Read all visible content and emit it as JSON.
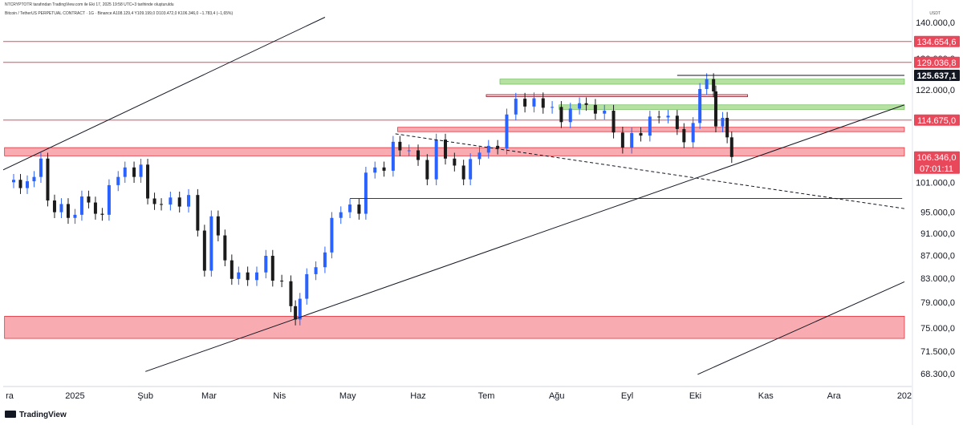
{
  "header": {
    "publish_line": "NTCRYPTOTR tarafından TradingView.com ile Eki 17, 2025 19:58 UTC+3 tarihinde oluşturuldu",
    "symbol_line": "Bitcoin / TetherUS PERPETUAL CONTRACT · 1G · Binance  A108.129,4  Y109.199,0  D103.472,0  K106.346,0  −1.783,4 (−1,65%)"
  },
  "currency": "USDT",
  "brand": "TradingView",
  "colors": {
    "up": "#2962ff",
    "down": "#1b1b1b",
    "zone_red": "#f7a3a9",
    "zone_red_border": "#e0303a",
    "zone_green": "#b7e1a1",
    "line_red": "#e8485a",
    "trend": "#131722",
    "label_red": "#e8485a",
    "label_black": "#131722"
  },
  "chart_data": {
    "type": "candlestick",
    "x_axis": {
      "ticks": [
        {
          "label": "ra",
          "date": "2024-12-01"
        },
        {
          "label": "2025",
          "date": "2025-01-01"
        },
        {
          "label": "Şub",
          "date": "2025-02-01"
        },
        {
          "label": "Mar",
          "date": "2025-03-01"
        },
        {
          "label": "Nis",
          "date": "2025-04-01"
        },
        {
          "label": "May",
          "date": "2025-05-01"
        },
        {
          "label": "Haz",
          "date": "2025-06-01"
        },
        {
          "label": "Tem",
          "date": "2025-07-01"
        },
        {
          "label": "Ağu",
          "date": "2025-08-01"
        },
        {
          "label": "Eyl",
          "date": "2025-09-01"
        },
        {
          "label": "Eki",
          "date": "2025-10-01"
        },
        {
          "label": "Kas",
          "date": "2025-11-01"
        },
        {
          "label": "Ara",
          "date": "2025-12-01"
        },
        {
          "label": "202",
          "date": "2026-01-01"
        }
      ]
    },
    "y_axis": {
      "scale": "log",
      "ticks": [
        {
          "label": "140.000,0",
          "value": 140000
        },
        {
          "label": "130.000,0",
          "value": 130000
        },
        {
          "label": "122.000,0",
          "value": 122000
        },
        {
          "label": "101.000,0",
          "value": 101000
        },
        {
          "label": "95.000,0",
          "value": 95000
        },
        {
          "label": "91.000,0",
          "value": 91000
        },
        {
          "label": "87.000,0",
          "value": 87000
        },
        {
          "label": "83.000,0",
          "value": 83000
        },
        {
          "label": "79.000,0",
          "value": 79000
        },
        {
          "label": "75.000,0",
          "value": 75000
        },
        {
          "label": "71.500,0",
          "value": 71500
        },
        {
          "label": "68.300,0",
          "value": 68300
        }
      ]
    },
    "price_labels": [
      {
        "label": "134.654,6",
        "value": 134654.6,
        "style": "red"
      },
      {
        "label": "129.036,8",
        "value": 129036.8,
        "style": "red"
      },
      {
        "label": "125.637,1",
        "value": 125637.1,
        "style": "black"
      },
      {
        "label": "114.675,0",
        "value": 114675.0,
        "style": "red"
      },
      {
        "label": "106.346,0",
        "value": 106346.0,
        "style": "red",
        "countdown": "07:01:11"
      }
    ],
    "last_price": 106346.0,
    "candles": [
      [
        "2024-12-05",
        101500
      ],
      [
        "2024-12-08",
        99800
      ],
      [
        "2024-12-11",
        101200
      ],
      [
        "2024-12-14",
        102100
      ],
      [
        "2024-12-17",
        106000
      ],
      [
        "2024-12-20",
        97300
      ],
      [
        "2024-12-23",
        95000
      ],
      [
        "2024-12-26",
        96600
      ],
      [
        "2024-12-29",
        93900
      ],
      [
        "2025-01-01",
        94500
      ],
      [
        "2025-01-04",
        98100
      ],
      [
        "2025-01-07",
        96900
      ],
      [
        "2025-01-10",
        94700
      ],
      [
        "2025-01-13",
        94500
      ],
      [
        "2025-01-16",
        100400
      ],
      [
        "2025-01-20",
        102100
      ],
      [
        "2025-01-23",
        104100
      ],
      [
        "2025-01-27",
        102100
      ],
      [
        "2025-01-30",
        104700
      ],
      [
        "2025-02-02",
        97700
      ],
      [
        "2025-02-05",
        96600
      ],
      [
        "2025-02-08",
        96500
      ],
      [
        "2025-02-12",
        97900
      ],
      [
        "2025-02-16",
        96100
      ],
      [
        "2025-02-20",
        98400
      ],
      [
        "2025-02-24",
        91500
      ],
      [
        "2025-02-27",
        84300
      ],
      [
        "2025-03-02",
        94200
      ],
      [
        "2025-03-05",
        90600
      ],
      [
        "2025-03-08",
        86100
      ],
      [
        "2025-03-11",
        82900
      ],
      [
        "2025-03-14",
        84000
      ],
      [
        "2025-03-18",
        82700
      ],
      [
        "2025-03-22",
        84000
      ],
      [
        "2025-03-26",
        86900
      ],
      [
        "2025-03-29",
        82600
      ],
      [
        "2025-04-02",
        82500
      ],
      [
        "2025-04-06",
        78400
      ],
      [
        "2025-04-08",
        76300
      ],
      [
        "2025-04-10",
        79600
      ],
      [
        "2025-04-13",
        83700
      ],
      [
        "2025-04-17",
        84900
      ],
      [
        "2025-04-21",
        87500
      ],
      [
        "2025-04-24",
        93900
      ],
      [
        "2025-04-28",
        95000
      ],
      [
        "2025-05-02",
        96500
      ],
      [
        "2025-05-06",
        94700
      ],
      [
        "2025-05-09",
        103000
      ],
      [
        "2025-05-13",
        104100
      ],
      [
        "2025-05-17",
        103400
      ],
      [
        "2025-05-21",
        109700
      ],
      [
        "2025-05-24",
        107800
      ],
      [
        "2025-05-28",
        107800
      ],
      [
        "2025-06-01",
        105700
      ],
      [
        "2025-06-05",
        101600
      ],
      [
        "2025-06-09",
        110200
      ],
      [
        "2025-06-13",
        106000
      ],
      [
        "2025-06-17",
        104500
      ],
      [
        "2025-06-21",
        101600
      ],
      [
        "2025-06-24",
        105900
      ],
      [
        "2025-06-28",
        107300
      ],
      [
        "2025-07-02",
        108800
      ],
      [
        "2025-07-06",
        108200
      ],
      [
        "2025-07-10",
        116000
      ],
      [
        "2025-07-14",
        119800
      ],
      [
        "2025-07-18",
        117900
      ],
      [
        "2025-07-22",
        119900
      ],
      [
        "2025-07-26",
        117600
      ],
      [
        "2025-07-30",
        117800
      ],
      [
        "2025-08-03",
        114200
      ],
      [
        "2025-08-07",
        117400
      ],
      [
        "2025-08-11",
        118700
      ],
      [
        "2025-08-14",
        118300
      ],
      [
        "2025-08-18",
        116200
      ],
      [
        "2025-08-22",
        116900
      ],
      [
        "2025-08-26",
        111800
      ],
      [
        "2025-08-30",
        108400
      ],
      [
        "2025-09-03",
        111700
      ],
      [
        "2025-09-07",
        111100
      ],
      [
        "2025-09-11",
        115500
      ],
      [
        "2025-09-15",
        115300
      ],
      [
        "2025-09-19",
        115700
      ],
      [
        "2025-09-23",
        112600
      ],
      [
        "2025-09-26",
        109600
      ],
      [
        "2025-09-30",
        114000
      ],
      [
        "2025-10-03",
        122200
      ],
      [
        "2025-10-06",
        124700
      ],
      [
        "2025-10-09",
        121600
      ],
      [
        "2025-10-10",
        113200
      ],
      [
        "2025-10-13",
        115200
      ],
      [
        "2025-10-15",
        110700
      ],
      [
        "2025-10-17",
        106346
      ]
    ],
    "horizontal_lines": [
      {
        "value": 134654.6,
        "color": "red"
      },
      {
        "value": 129036.8,
        "color": "red"
      },
      {
        "value": 114675.0,
        "color": "red"
      }
    ],
    "zones": [
      {
        "from": "2024-12-01",
        "to": "2026-01-01",
        "low": 106600,
        "high": 108400,
        "color": "red"
      },
      {
        "from": "2024-12-01",
        "to": "2026-01-01",
        "low": 73400,
        "high": 76800,
        "color": "red"
      },
      {
        "from": "2025-05-23",
        "to": "2026-01-01",
        "low": 112000,
        "high": 113000,
        "color": "red"
      },
      {
        "from": "2025-07-07",
        "to": "2026-01-01",
        "low": 123400,
        "high": 124700,
        "color": "green"
      },
      {
        "from": "2025-08-02",
        "to": "2026-01-01",
        "low": 117200,
        "high": 118300,
        "color": "green"
      },
      {
        "from": "2025-07-01",
        "to": "2025-10-24",
        "low": 120300,
        "high": 120800,
        "color": "red-outline"
      }
    ],
    "segments": [
      {
        "from": [
          "2025-05-02",
          97700
        ],
        "to": [
          "2025-12-31",
          97700
        ],
        "color": "darkred",
        "dash": false
      },
      {
        "from": [
          "2025-09-23",
          125637
        ],
        "to": [
          "2026-01-01",
          125637
        ],
        "color": "black",
        "dash": false
      },
      {
        "from": [
          "2025-05-22",
          111500
        ],
        "to": [
          "2026-01-01",
          95700
        ],
        "color": "black",
        "dash": true
      },
      {
        "from": [
          "2024-11-30",
          103500
        ],
        "to": [
          "2025-04-21",
          141500
        ],
        "color": "black",
        "dash": false
      },
      {
        "from": [
          "2025-02-01",
          68600
        ],
        "to": [
          "2026-01-01",
          118300
        ],
        "color": "black",
        "dash": false
      },
      {
        "from": [
          "2025-10-02",
          68200
        ],
        "to": [
          "2026-01-01",
          82400
        ],
        "color": "black",
        "dash": false
      }
    ]
  }
}
